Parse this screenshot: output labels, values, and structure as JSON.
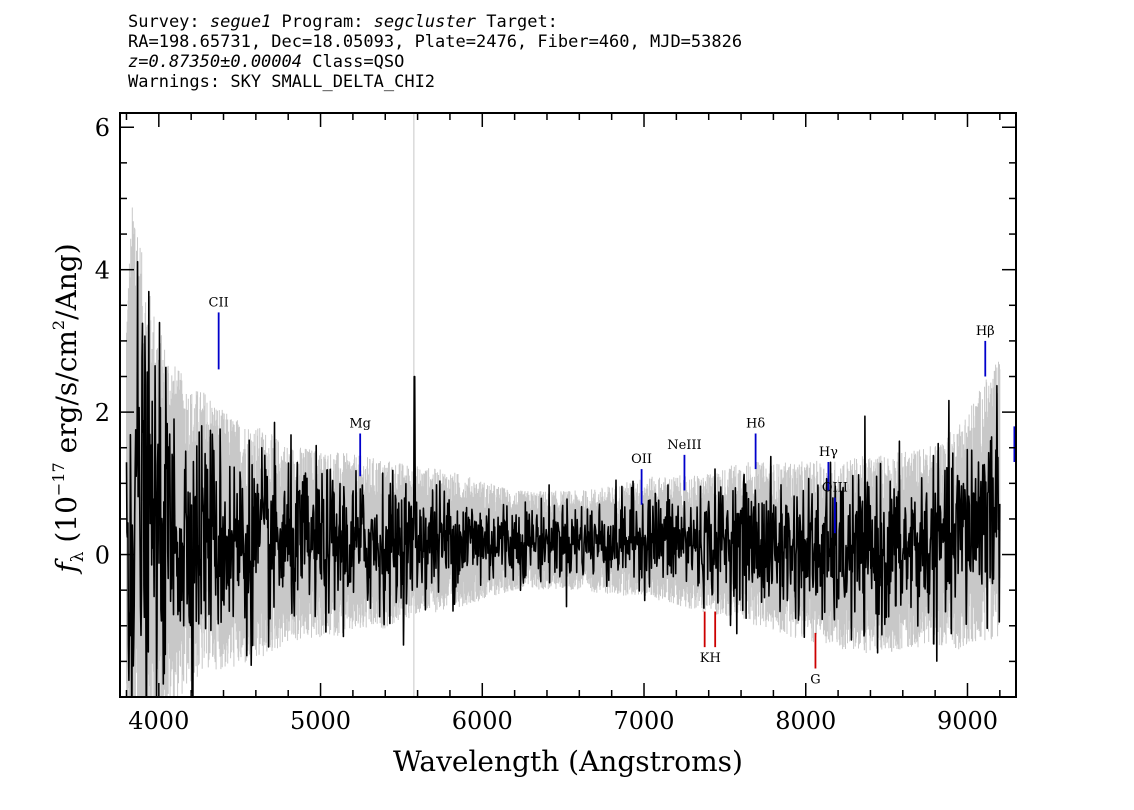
{
  "header": {
    "survey_label": "Survey: ",
    "survey": "segue1",
    "program_label": " Program: ",
    "program": "segcluster",
    "target_label": " Target:",
    "line2": "RA=198.65731, Dec=18.05093, Plate=2476, Fiber=460, MJD=53826",
    "redshift": "z=0.87350±0.00004",
    "class_text": " Class=QSO",
    "warnings": "Warnings: SKY SMALL_DELTA_CHI2"
  },
  "chart_data": {
    "type": "line",
    "title": "",
    "xlabel": "Wavelength (Angstroms)",
    "ylabel_main": "f",
    "ylabel_sub": "λ",
    "ylabel_rest": " (10",
    "ylabel_exp1": "−17",
    "ylabel_mid": " erg/s/cm",
    "ylabel_exp2": "2",
    "ylabel_end": "/Ang)",
    "xlim": [
      3760,
      9300
    ],
    "ylim": [
      -2.0,
      6.2
    ],
    "x_ticks": [
      4000,
      5000,
      6000,
      7000,
      8000,
      9000
    ],
    "x_tick_labels": [
      "4000",
      "5000",
      "6000",
      "7000",
      "8000",
      "9000"
    ],
    "y_ticks": [
      0,
      2,
      4,
      6
    ],
    "y_tick_labels": [
      "0",
      "2",
      "4",
      "6"
    ],
    "grid": false,
    "flux_envelope": {
      "x": [
        3800,
        3850,
        3900,
        4000,
        4100,
        4200,
        4300,
        4400,
        4500,
        4600,
        4700,
        4800,
        5000,
        5200,
        5400,
        5600,
        5800,
        6000,
        6200,
        6400,
        6600,
        6800,
        7000,
        7200,
        7400,
        7600,
        7800,
        8000,
        8200,
        8400,
        8600,
        8800,
        8900,
        9000,
        9100,
        9200
      ],
      "y": [
        0.3,
        0.9,
        0.6,
        0.4,
        0.3,
        0.25,
        0.35,
        0.2,
        0.15,
        0.15,
        0.15,
        0.15,
        0.15,
        0.15,
        0.15,
        0.2,
        0.2,
        0.2,
        0.2,
        0.2,
        0.2,
        0.2,
        0.25,
        0.2,
        0.15,
        0.2,
        0.1,
        0.05,
        0.0,
        0.0,
        0.05,
        0.15,
        0.2,
        0.35,
        0.6,
        0.8
      ],
      "noise": [
        2.5,
        3.2,
        2.5,
        2.0,
        1.7,
        1.5,
        1.4,
        1.3,
        1.25,
        1.2,
        1.1,
        1.0,
        0.95,
        0.9,
        0.85,
        0.75,
        0.7,
        0.6,
        0.5,
        0.5,
        0.5,
        0.55,
        0.6,
        0.65,
        0.7,
        0.8,
        0.85,
        0.9,
        0.95,
        1.0,
        1.0,
        1.0,
        1.1,
        1.2,
        1.3,
        1.4
      ]
    },
    "emission_lines": [
      {
        "label": "CII",
        "x": 4370,
        "y": [
          2.6,
          3.4
        ]
      },
      {
        "label": "Mg",
        "x": 5245,
        "y": [
          1.1,
          1.7
        ]
      },
      {
        "label": "OII",
        "x": 6985,
        "y": [
          0.7,
          1.2
        ]
      },
      {
        "label": "NeIII",
        "x": 7250,
        "y": [
          0.9,
          1.4
        ]
      },
      {
        "label": "Hδ",
        "x": 7690,
        "y": [
          1.2,
          1.7
        ]
      },
      {
        "label": "Hγ",
        "x": 8140,
        "y": [
          0.9,
          1.3
        ]
      },
      {
        "label": "OIII",
        "x": 8180,
        "y": [
          0.3,
          0.8
        ]
      },
      {
        "label": "Hβ",
        "x": 9110,
        "y": [
          2.5,
          3.0
        ]
      },
      {
        "label": "",
        "x": 9290,
        "y": [
          1.3,
          1.8
        ]
      }
    ],
    "absorption_lines": [
      {
        "label": "K",
        "x": 7375,
        "y": [
          -1.3,
          -0.8
        ]
      },
      {
        "label": "H",
        "x": 7440,
        "y": [
          -1.3,
          -0.8
        ]
      },
      {
        "label": "G",
        "x": 8060,
        "y": [
          -1.6,
          -1.1
        ]
      }
    ],
    "colors": {
      "flux": "#000000",
      "error": "#c8c8c8",
      "emission": "#0000cc",
      "absorption": "#cc0000"
    }
  }
}
